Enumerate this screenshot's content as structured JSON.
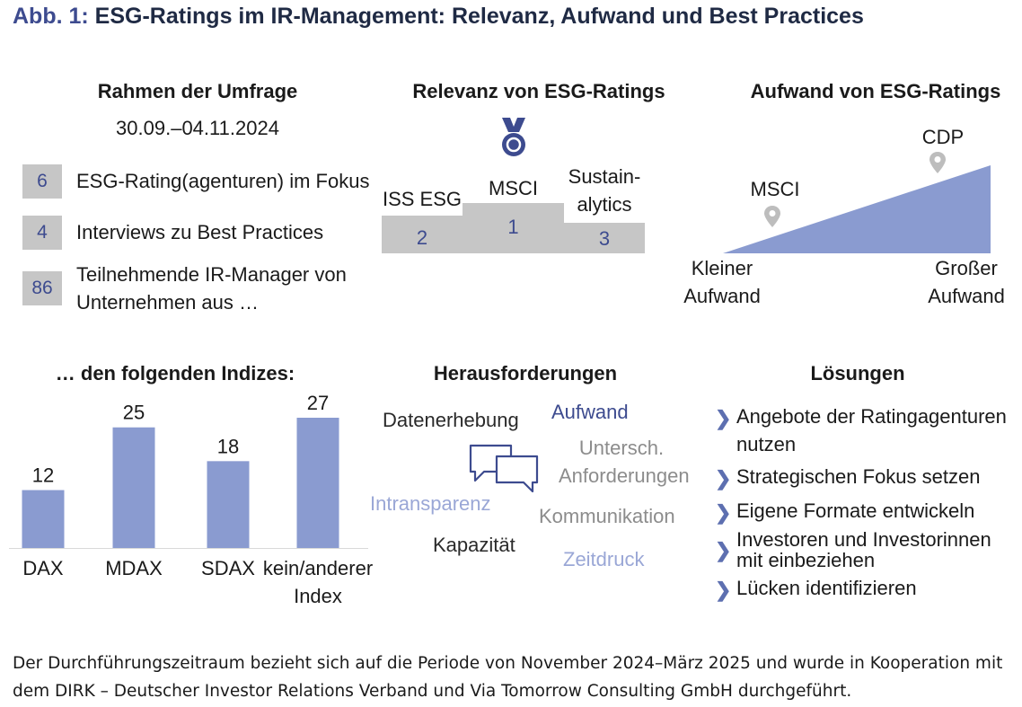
{
  "title": {
    "prefix": "Abb. 1:",
    "text": "ESG-Ratings im IR-Management: Relevanz, Aufwand und Best Practices"
  },
  "colors": {
    "accent": "#3d4b8f",
    "bar": "#8a9bd0",
    "gray": "#c6c6c6",
    "light_blue": "#9aa7d6",
    "mid_gray": "#8c8c8c"
  },
  "survey": {
    "heading": "Rahmen der Umfrage",
    "date": "30.09.–04.11.2024",
    "items": [
      {
        "count": "6",
        "label": "ESG-Rating(agenturen) im Fokus"
      },
      {
        "count": "4",
        "label": "Interviews zu Best Practices"
      },
      {
        "count": "86",
        "label_line1": "Teilnehmende IR-Manager von",
        "label_line2": "Unternehmen aus …"
      }
    ]
  },
  "relevance": {
    "heading": "Relevanz von ESG-Ratings",
    "icon": "medal-icon",
    "podium": [
      {
        "name": "ISS ESG",
        "rank": "2"
      },
      {
        "name": "MSCI",
        "rank": "1"
      },
      {
        "name_line1": "Sustain-",
        "name_line2": "alytics",
        "rank": "3"
      }
    ]
  },
  "effort": {
    "heading": "Aufwand von ESG-Ratings",
    "markers": [
      {
        "label": "MSCI"
      },
      {
        "label": "CDP"
      }
    ],
    "low_line1": "Kleiner",
    "low_line2": "Aufwand",
    "high_line1": "Großer",
    "high_line2": "Aufwand"
  },
  "chart_data": {
    "type": "bar",
    "title": "… den folgenden Indizes:",
    "categories": [
      "DAX",
      "MDAX",
      "SDAX",
      "kein/anderer Index"
    ],
    "category_lines": [
      [
        "DAX"
      ],
      [
        "MDAX"
      ],
      [
        "SDAX"
      ],
      [
        "kein/anderer",
        "Index"
      ]
    ],
    "values": [
      12,
      25,
      18,
      27
    ],
    "value_labels": [
      "12",
      "25",
      "18",
      "27"
    ],
    "ylim": [
      0,
      27
    ],
    "grid": false,
    "legend": "none"
  },
  "challenges": {
    "heading": "Herausforderungen",
    "icon": "speech-bubbles-icon",
    "words": [
      {
        "text": "Datenerhebung"
      },
      {
        "text": "Aufwand"
      },
      {
        "text_line1": "Untersch.",
        "text_line2": "Anforderungen"
      },
      {
        "text": "Intransparenz"
      },
      {
        "text": "Kommunikation"
      },
      {
        "text": "Kapazität"
      },
      {
        "text": "Zeitdruck"
      }
    ]
  },
  "solutions": {
    "heading": "Lösungen",
    "items": [
      {
        "line1": "Angebote der Ratingagenturen",
        "line2": "nutzen"
      },
      {
        "line1": "Strategischen Fokus setzen"
      },
      {
        "line1": "Eigene Formate entwickeln"
      },
      {
        "line1": "Investoren und Investorinnen",
        "line2": "mit einbeziehen"
      },
      {
        "line1": "Lücken identifizieren"
      }
    ]
  },
  "footer": {
    "line1": "Der Durchführungszeitraum bezieht sich auf die Periode von November 2024–März 2025 und wurde in Kooperation mit",
    "line2": "dem DIRK – Deutscher Investor Relations Verband und Via Tomorrow Consulting GmbH durchgeführt."
  }
}
